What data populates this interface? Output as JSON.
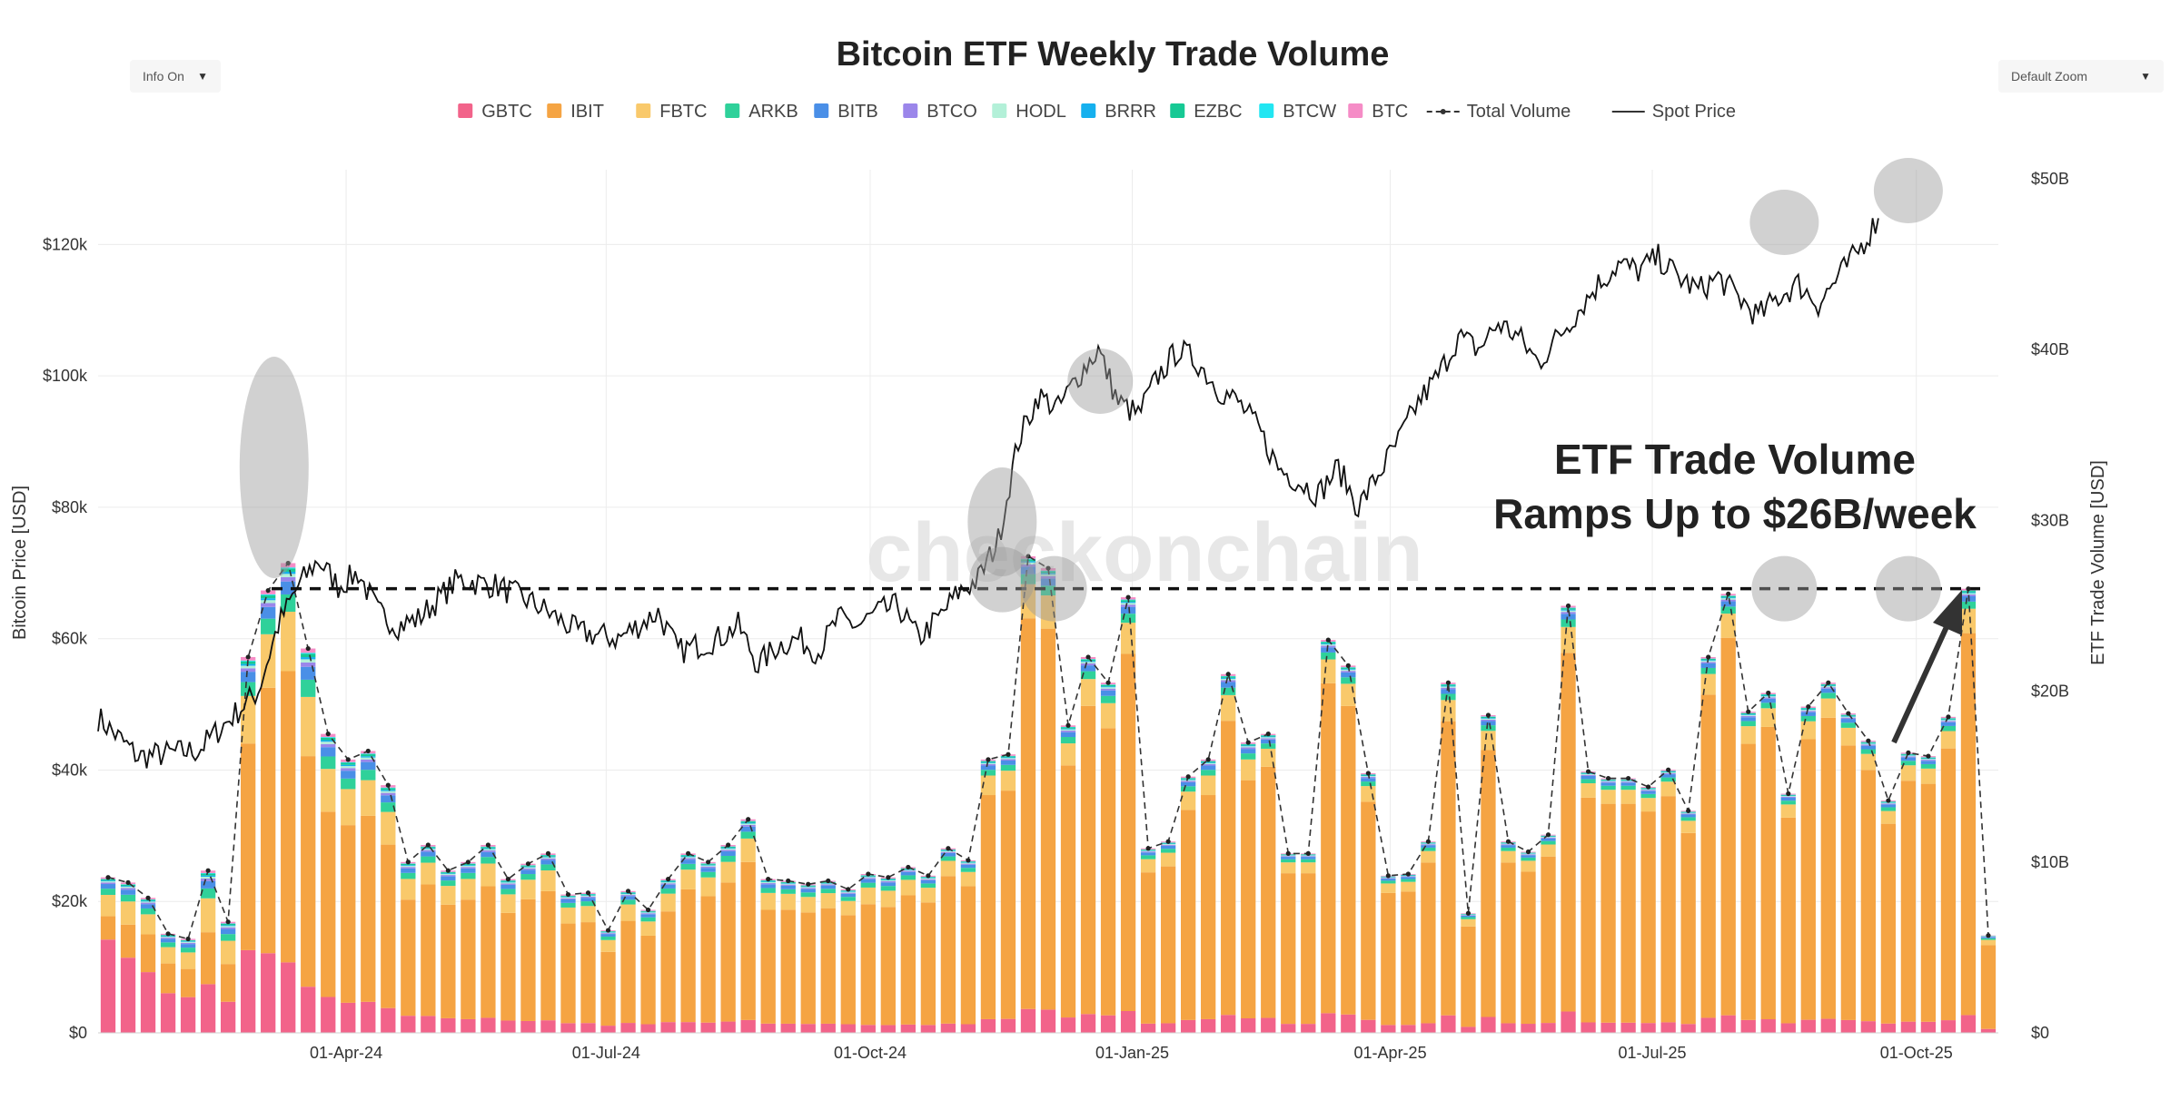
{
  "controls": {
    "info_select": "Info On",
    "zoom_select": "Default Zoom",
    "caret": "▼"
  },
  "watermark": "checkonchain",
  "chart_data": {
    "type": "bar",
    "title": "Bitcoin ETF Weekly Trade Volume",
    "left_axis": {
      "label": "Bitcoin Price [USD]",
      "min": 0,
      "max": 130000,
      "ticks": [
        "$0",
        "$20k",
        "$40k",
        "$60k",
        "$80k",
        "$100k",
        "$120k"
      ]
    },
    "right_axis": {
      "label": "ETF Trade Volume [USD]",
      "min": 0,
      "max": 50,
      "unit": "B",
      "ticks": [
        "$0",
        "$10B",
        "$20B",
        "$30B",
        "$40B",
        "$50B"
      ]
    },
    "x_axis": {
      "tick_labels": [
        "01-Apr-24",
        "01-Jul-24",
        "01-Oct-24",
        "01-Jan-25",
        "01-Apr-25",
        "01-Jul-25",
        "01-Oct-25"
      ],
      "tick_weeks": [
        12.4,
        25.4,
        38.6,
        51.7,
        64.6,
        77.7,
        90.9
      ]
    },
    "legend": {
      "placement": "top-center",
      "items": [
        {
          "name": "GBTC",
          "color": "#f2638a"
        },
        {
          "name": "IBIT",
          "color": "#f5a443"
        },
        {
          "name": "FBTC",
          "color": "#f9c96b"
        },
        {
          "name": "ARKB",
          "color": "#2fd19a"
        },
        {
          "name": "BITB",
          "color": "#4a8fe7"
        },
        {
          "name": "BTCO",
          "color": "#9b86ea"
        },
        {
          "name": "HODL",
          "color": "#b3f0d8"
        },
        {
          "name": "BRRR",
          "color": "#16b0ee"
        },
        {
          "name": "EZBC",
          "color": "#16c994"
        },
        {
          "name": "BTCW",
          "color": "#22e6f2"
        },
        {
          "name": "BTC",
          "color": "#f58cc6"
        }
      ],
      "line_items": [
        {
          "name": "Total Volume",
          "style": "dashed"
        },
        {
          "name": "Spot Price",
          "style": "solid"
        }
      ]
    },
    "weekly_total_volume_billions": [
      9.1,
      8.8,
      7.9,
      5.8,
      5.5,
      9.5,
      6.5,
      22,
      25.9,
      27.5,
      22.5,
      17.5,
      16,
      16.5,
      14.5,
      10,
      11,
      9.5,
      10,
      11,
      9,
      9.9,
      10.5,
      8.1,
      8.2,
      6,
      8.3,
      7.2,
      9,
      10.5,
      10,
      11,
      12.5,
      9,
      8.9,
      8.7,
      8.9,
      8.4,
      9.3,
      9.1,
      9.7,
      9.2,
      10.8,
      10.1,
      16,
      16.3,
      27.9,
      27.2,
      18,
      22,
      20.5,
      25.5,
      10.8,
      11.2,
      15,
      16,
      21,
      17,
      17.5,
      10.5,
      10.5,
      23,
      21.5,
      15.2,
      9.2,
      9.3,
      11.2,
      20.5,
      7,
      18.6,
      11.2,
      10.6,
      11.6,
      25,
      15.3,
      14.9,
      14.9,
      14.4,
      15.4,
      13,
      22,
      25.7,
      18.8,
      19.9,
      14,
      19.1,
      20.5,
      18.7,
      17.1,
      13.6,
      16.4,
      16.2,
      18.5,
      26,
      5.7
    ],
    "weekly_ibit_share": [
      0.15,
      0.22,
      0.28,
      0.3,
      0.3,
      0.32,
      0.34,
      0.55,
      0.6,
      0.62,
      0.6,
      0.62,
      0.65,
      0.66,
      0.66,
      0.68,
      0.7,
      0.7,
      0.7,
      0.7,
      0.7,
      0.72,
      0.72,
      0.72,
      0.72,
      0.72,
      0.72,
      0.72,
      0.72,
      0.74,
      0.74,
      0.74,
      0.74,
      0.74,
      0.75,
      0.75,
      0.76,
      0.76,
      0.76,
      0.76,
      0.78,
      0.78,
      0.8,
      0.8,
      0.82,
      0.82,
      0.82,
      0.82,
      0.82,
      0.82,
      0.82,
      0.82,
      0.82,
      0.82,
      0.82,
      0.82,
      0.82,
      0.82,
      0.84,
      0.84,
      0.84,
      0.84,
      0.84,
      0.84,
      0.84,
      0.84,
      0.84,
      0.84,
      0.84,
      0.84,
      0.84,
      0.84,
      0.84,
      0.84,
      0.86,
      0.86,
      0.86,
      0.86,
      0.86,
      0.86,
      0.86,
      0.86,
      0.86,
      0.86,
      0.86,
      0.86,
      0.86,
      0.86,
      0.86,
      0.86,
      0.86,
      0.86,
      0.86,
      0.86,
      0.86
    ],
    "weekly_gbtc_share": [
      0.6,
      0.5,
      0.45,
      0.4,
      0.38,
      0.3,
      0.28,
      0.22,
      0.18,
      0.15,
      0.12,
      0.12,
      0.11,
      0.11,
      0.1,
      0.1,
      0.09,
      0.09,
      0.08,
      0.08,
      0.08,
      0.07,
      0.07,
      0.07,
      0.07,
      0.07,
      0.07,
      0.07,
      0.07,
      0.06,
      0.06,
      0.06,
      0.06,
      0.06,
      0.06,
      0.06,
      0.06,
      0.06,
      0.05,
      0.05,
      0.05,
      0.05,
      0.05,
      0.05,
      0.05,
      0.05,
      0.05,
      0.05,
      0.05,
      0.05,
      0.05,
      0.05,
      0.05,
      0.05,
      0.05,
      0.05,
      0.05,
      0.05,
      0.05,
      0.05,
      0.05,
      0.05,
      0.05,
      0.05,
      0.05,
      0.05,
      0.05,
      0.05,
      0.05,
      0.05,
      0.05,
      0.05,
      0.05,
      0.05,
      0.04,
      0.04,
      0.04,
      0.04,
      0.04,
      0.04,
      0.04,
      0.04,
      0.04,
      0.04,
      0.04,
      0.04,
      0.04,
      0.04,
      0.04,
      0.04,
      0.04,
      0.04,
      0.04,
      0.04,
      0.04
    ],
    "spot_price_anchors_usd": [
      [
        0,
        48000
      ],
      [
        2,
        42000
      ],
      [
        5,
        43000
      ],
      [
        8,
        52000
      ],
      [
        9,
        62000
      ],
      [
        10,
        68000
      ],
      [
        11,
        72000
      ],
      [
        12,
        68000
      ],
      [
        13,
        70000
      ],
      [
        14,
        64000
      ],
      [
        15,
        62000
      ],
      [
        16,
        63000
      ],
      [
        18,
        69000
      ],
      [
        20,
        68000
      ],
      [
        22,
        65000
      ],
      [
        24,
        61000
      ],
      [
        26,
        60000
      ],
      [
        28,
        64000
      ],
      [
        29,
        58000
      ],
      [
        31,
        60000
      ],
      [
        32,
        62000
      ],
      [
        33,
        56000
      ],
      [
        34,
        59000
      ],
      [
        35,
        60000
      ],
      [
        36,
        58000
      ],
      [
        37,
        63000
      ],
      [
        38,
        62000
      ],
      [
        39,
        64000
      ],
      [
        40,
        65000
      ],
      [
        41,
        60000
      ],
      [
        42,
        63000
      ],
      [
        43,
        67000
      ],
      [
        44,
        69000
      ],
      [
        45,
        75000
      ],
      [
        46,
        90000
      ],
      [
        47,
        97000
      ],
      [
        48,
        95000
      ],
      [
        49,
        100000
      ],
      [
        50,
        104000
      ],
      [
        51,
        96000
      ],
      [
        52,
        94000
      ],
      [
        53,
        100000
      ],
      [
        54,
        104000
      ],
      [
        55,
        102000
      ],
      [
        56,
        98000
      ],
      [
        57,
        96000
      ],
      [
        58,
        92000
      ],
      [
        59,
        86000
      ],
      [
        60,
        84000
      ],
      [
        61,
        82000
      ],
      [
        62,
        86000
      ],
      [
        63,
        80000
      ],
      [
        64,
        85000
      ],
      [
        65,
        90000
      ],
      [
        66,
        96000
      ],
      [
        67,
        100000
      ],
      [
        68,
        106000
      ],
      [
        69,
        104000
      ],
      [
        70,
        108000
      ],
      [
        71,
        106000
      ],
      [
        72,
        102000
      ],
      [
        73,
        106000
      ],
      [
        74,
        110000
      ],
      [
        75,
        114000
      ],
      [
        76,
        117000
      ],
      [
        77,
        116000
      ],
      [
        78,
        118000
      ],
      [
        79,
        115000
      ],
      [
        80,
        113000
      ],
      [
        81,
        115000
      ],
      [
        82,
        112000
      ],
      [
        83,
        109000
      ],
      [
        84,
        112000
      ],
      [
        85,
        114000
      ],
      [
        86,
        111000
      ],
      [
        87,
        115000
      ],
      [
        88,
        119000
      ],
      [
        89,
        124000
      ]
    ],
    "reference_level": {
      "value_billions": 26,
      "style": "dashed"
    },
    "annotation": {
      "line1": "ETF Trade Volume",
      "line2": "Ramps Up to $26B/week"
    },
    "highlight_weeks": [
      8.8,
      45.2,
      50.1,
      84.3,
      90.5
    ],
    "grid": true
  }
}
